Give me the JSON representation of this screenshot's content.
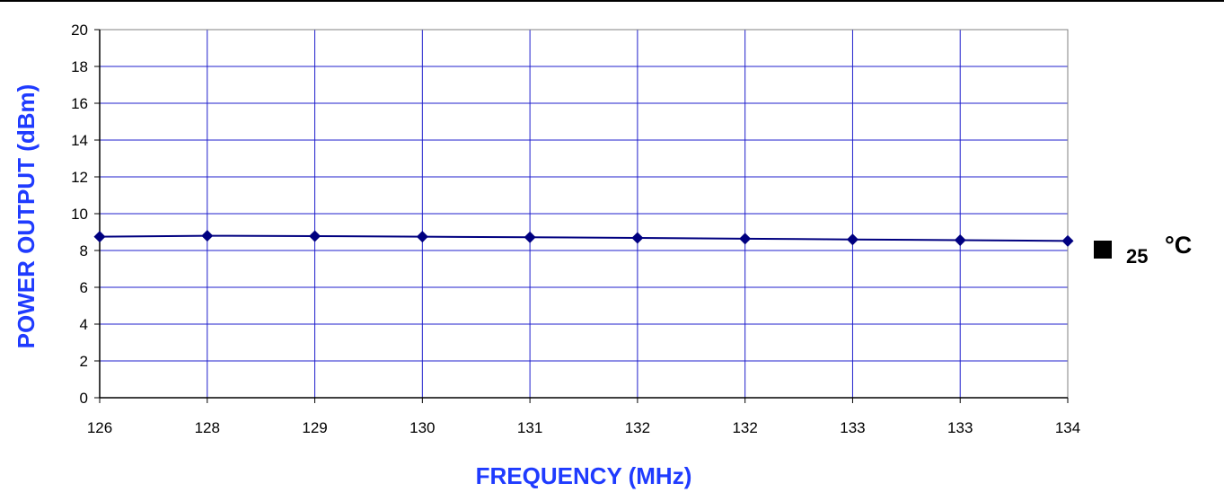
{
  "chart_data": {
    "type": "line",
    "title": "",
    "xlabel": "FREQUENCY (MHz)",
    "ylabel": "POWER OUTPUT (dBm)",
    "categories": [
      "126",
      "128",
      "129",
      "130",
      "131",
      "132",
      "132",
      "133",
      "133",
      "134"
    ],
    "ylim": [
      0,
      20
    ],
    "yticks": [
      0,
      2,
      4,
      6,
      8,
      10,
      12,
      14,
      16,
      18,
      20
    ],
    "grid": true,
    "legend_position": "right",
    "series": [
      {
        "name": "25",
        "name_suffix": "°C",
        "values": [
          8.75,
          8.8,
          8.78,
          8.75,
          8.72,
          8.68,
          8.64,
          8.6,
          8.56,
          8.52
        ],
        "color": "#000080",
        "marker": "diamond"
      }
    ],
    "colors": {
      "grid": "#1f1fcc",
      "axis_title": "#1f3bff",
      "plot_border": "#808080",
      "legend_marker": "#000000"
    }
  }
}
